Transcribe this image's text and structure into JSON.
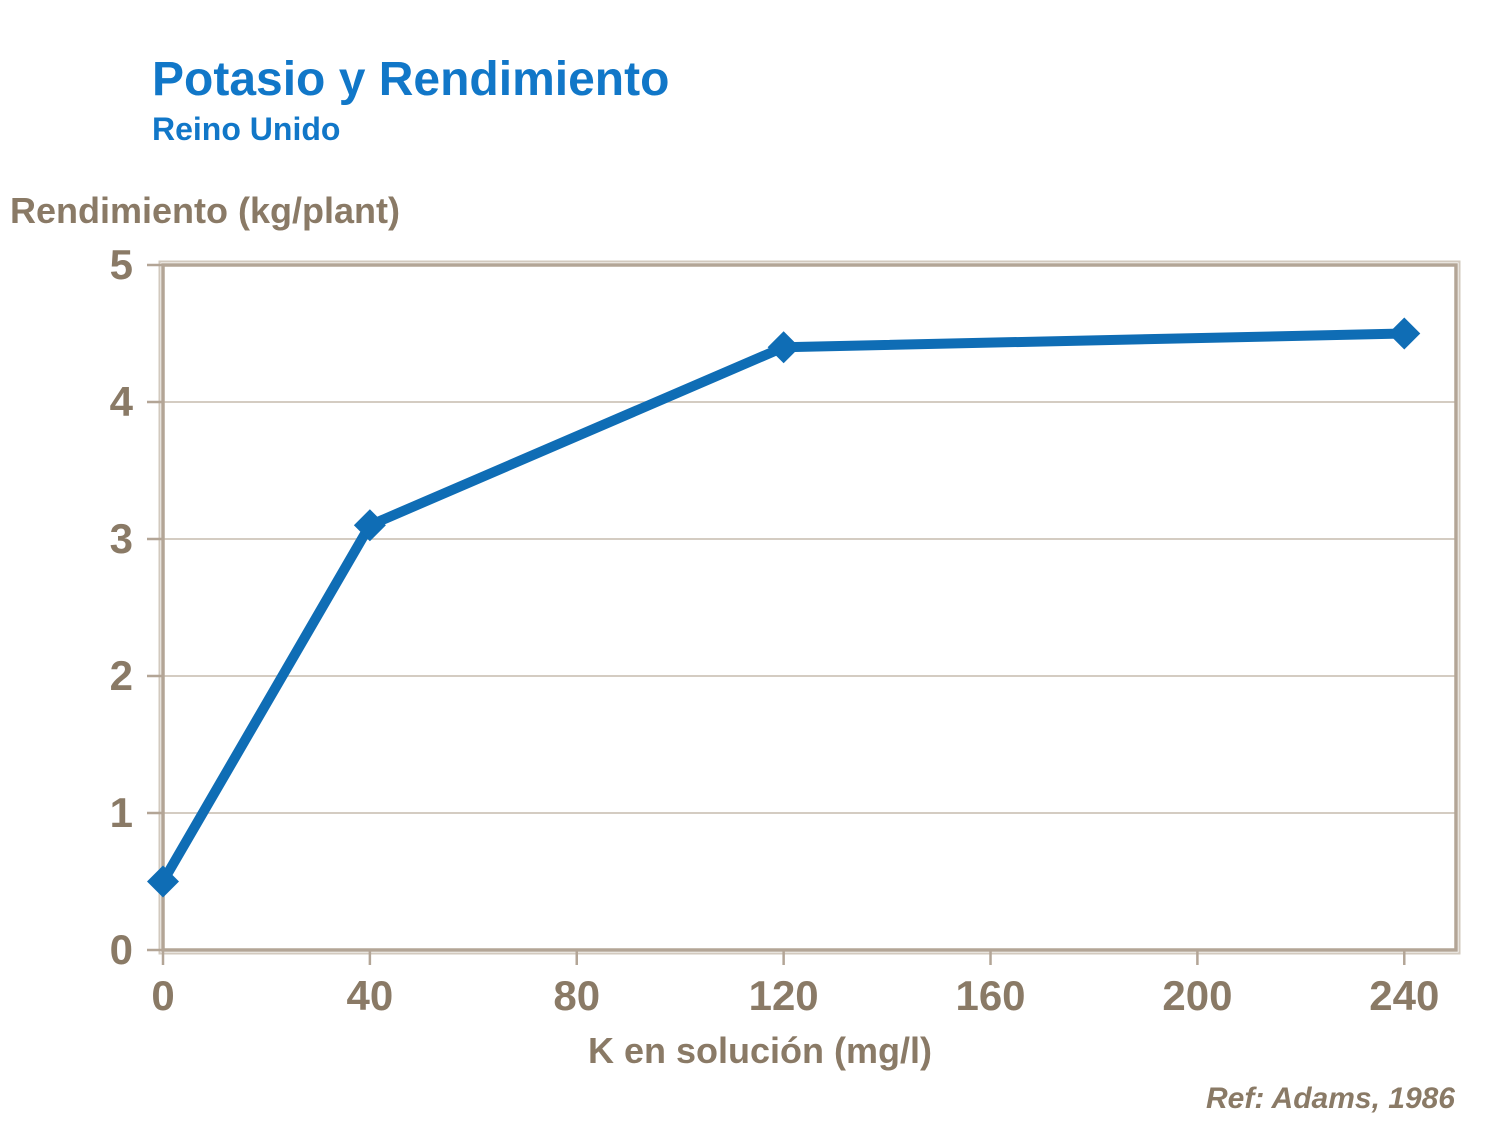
{
  "header": {
    "title": "Potasio y Rendimiento",
    "subtitle": "Reino Unido"
  },
  "chart_data": {
    "type": "line",
    "title": "Potasio y Rendimiento",
    "subtitle": "Reino Unido",
    "xlabel": "K en solución (mg/l)",
    "ylabel": "Rendimiento (kg/plant)",
    "x": [
      0,
      40,
      120,
      240
    ],
    "y": [
      0.5,
      3.1,
      4.4,
      4.5
    ],
    "xlim": [
      0,
      250
    ],
    "ylim": [
      0,
      5
    ],
    "xticks": [
      0,
      40,
      80,
      120,
      160,
      200,
      240
    ],
    "yticks": [
      0,
      1,
      2,
      3,
      4,
      5
    ],
    "grid": "horizontal-only",
    "legend": "none",
    "marker": "diamond",
    "series_name": "Rendimiento"
  },
  "footer": {
    "ref": "Ref: Adams, 1986"
  },
  "colors": {
    "title_blue": "#1177C8",
    "line_blue": "#0F6DB5",
    "text_brown": "#8A7A66",
    "axis_tan": "#B3A596",
    "axis_shadow": "#D2C9BE",
    "grid_tan": "#C6BBAD",
    "background": "#FFFFFF"
  }
}
